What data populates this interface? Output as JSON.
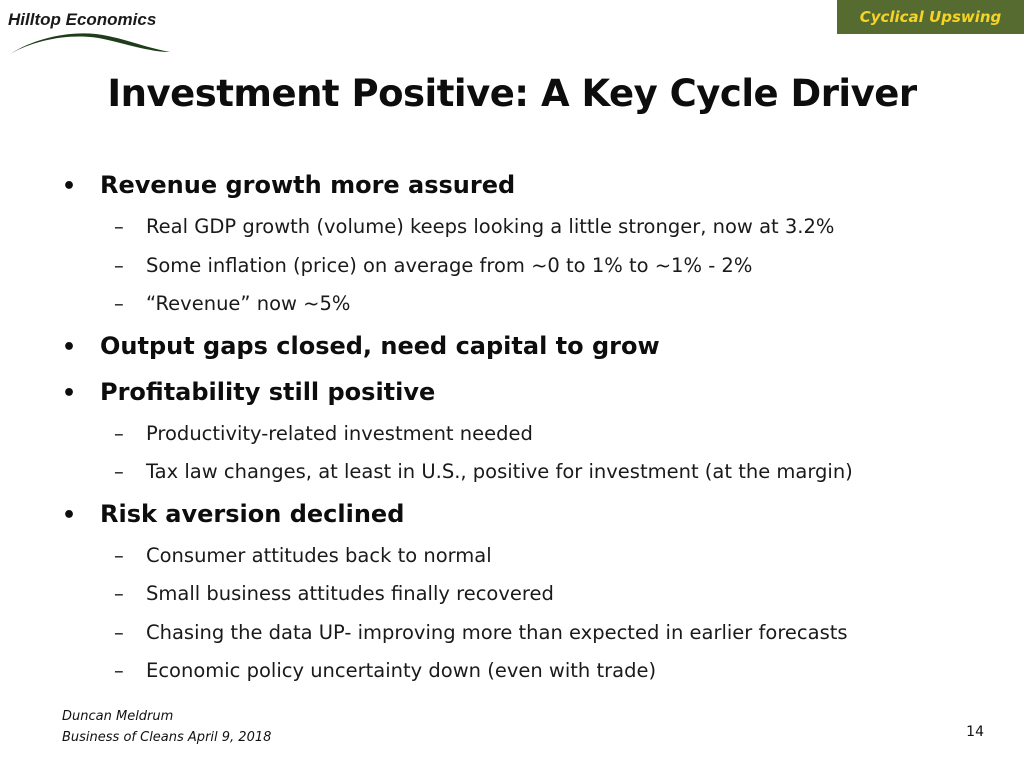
{
  "brand": {
    "name": "Hilltop Economics"
  },
  "tag": {
    "label": "Cyclical Upswing"
  },
  "colors": {
    "tag_background": "#556b2f",
    "tag_text": "#f5d327"
  },
  "slide": {
    "title": "Investment Positive: A Key Cycle Driver",
    "sections": [
      {
        "heading": "Revenue growth more assured",
        "items": [
          "Real GDP growth (volume) keeps looking a little stronger, now at 3.2%",
          "Some inflation (price) on average from ~0 to 1% to ~1% - 2%",
          "“Revenue” now ~5%"
        ]
      },
      {
        "heading": "Output gaps closed, need capital to grow",
        "items": []
      },
      {
        "heading": "Profitability still positive",
        "items": [
          "Productivity-related investment needed",
          "Tax law changes, at least in U.S., positive for investment (at the margin)"
        ]
      },
      {
        "heading": "Risk aversion declined",
        "items": [
          "Consumer attitudes back to normal",
          "Small business attitudes finally recovered",
          "Chasing the data UP- improving more than expected in earlier forecasts",
          "Economic policy uncertainty down (even with trade)"
        ]
      }
    ]
  },
  "footer": {
    "author": "Duncan Meldrum",
    "event": "Business of Cleans April 9, 2018",
    "page_number": "14"
  },
  "bullets": {
    "level1": "•",
    "level2": "–"
  }
}
